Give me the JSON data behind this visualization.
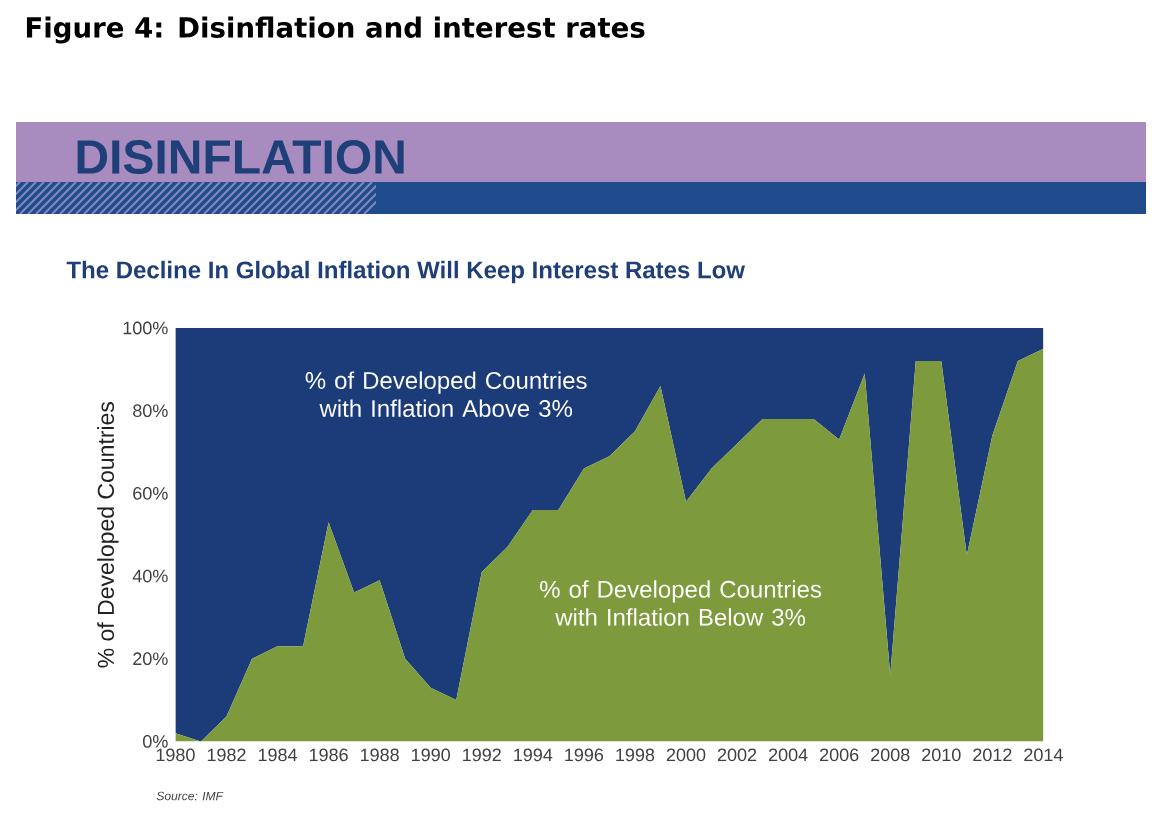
{
  "chart_data": {
    "type": "area",
    "title": "Figure 4: Disinflation and interest rates",
    "subtitle": "The Decline In Global Inflation Will Keep Interest Rates Low",
    "ylabel": "% of Developed Countries",
    "annotations": [
      "DISINFLATION",
      "Source: IMF"
    ],
    "x": [
      1980,
      1981,
      1982,
      1983,
      1984,
      1985,
      1986,
      1987,
      1988,
      1989,
      1990,
      1991,
      1992,
      1993,
      1994,
      1995,
      1996,
      1997,
      1998,
      1999,
      2000,
      2001,
      2002,
      2003,
      2004,
      2005,
      2006,
      2007,
      2008,
      2009,
      2010,
      2011,
      2012,
      2013,
      2014
    ],
    "stacked": true,
    "series": [
      {
        "name": "% of Developed Countries with Inflation Below 3%",
        "color": "#7d9b3d",
        "values": [
          2,
          0,
          6,
          20,
          23,
          23,
          53,
          36,
          39,
          20,
          13,
          10,
          41,
          47,
          56,
          56,
          66,
          69,
          75,
          86,
          58,
          66,
          72,
          78,
          78,
          78,
          73,
          89,
          16,
          92,
          92,
          45,
          74,
          92,
          95
        ]
      },
      {
        "name": "% of Developed Countries with Inflation Above 3%",
        "color": "#1c3c79",
        "values": [
          98,
          100,
          94,
          80,
          77,
          77,
          47,
          64,
          61,
          80,
          87,
          90,
          59,
          53,
          44,
          44,
          34,
          31,
          25,
          14,
          42,
          34,
          28,
          22,
          22,
          22,
          27,
          11,
          84,
          8,
          8,
          55,
          26,
          8,
          5
        ]
      }
    ],
    "xlim": [
      1980,
      2014
    ],
    "xticks": [
      1980,
      1982,
      1984,
      1986,
      1988,
      1990,
      1992,
      1994,
      1996,
      1998,
      2000,
      2002,
      2004,
      2006,
      2008,
      2010,
      2012,
      2014
    ],
    "ylim": [
      0,
      100
    ],
    "yticks": [
      {
        "value": 0,
        "label": "0%"
      },
      {
        "value": 20,
        "label": "20%"
      },
      {
        "value": 40,
        "label": "40%"
      },
      {
        "value": 60,
        "label": "60%"
      },
      {
        "value": 80,
        "label": "80%"
      },
      {
        "value": 100,
        "label": "100%"
      }
    ]
  }
}
